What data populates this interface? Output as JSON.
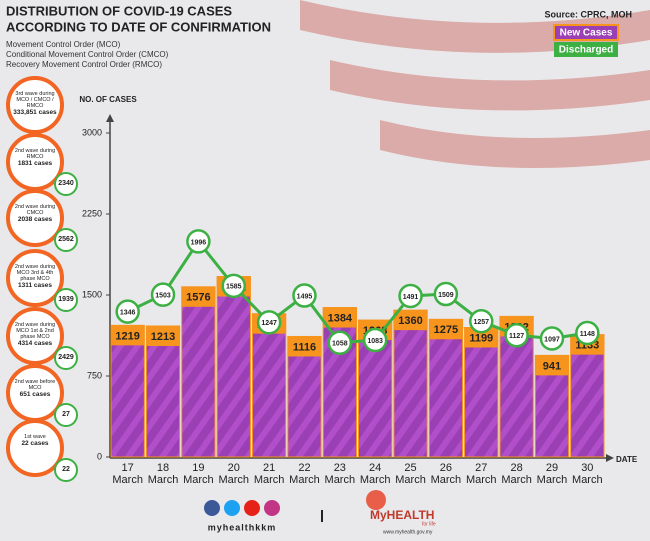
{
  "chart_data": {
    "type": "bar",
    "title": "DISTRIBUTION OF COVID-19 CASES",
    "title_line2": "ACCORDING TO DATE OF CONFIRMATION",
    "subtitle": [
      "Movement Control Order (MCO)",
      "Conditional Movement Control Order (CMCO)",
      "Recovery Movement Control Order (RMCO)"
    ],
    "source": "Source: CPRC, MOH",
    "y_label": "NO. OF CASES",
    "x_label": "DATE",
    "categories": [
      "17 March",
      "18 March",
      "19 March",
      "20 March",
      "21 March",
      "22 March",
      "23 March",
      "24 March",
      "25 March",
      "26 March",
      "27 March",
      "28 March",
      "29 March",
      "30 March"
    ],
    "series": [
      {
        "name": "New Cases",
        "color": "#9b3fb5",
        "cap_color": "#f7941d",
        "values": [
          1219,
          1213,
          1576,
          1671,
          1327,
          1116,
          1384,
          1268,
          1360,
          1275,
          1199,
          1302,
          941,
          1133
        ]
      },
      {
        "name": "Discharged",
        "color": "#3cb043",
        "values": [
          1346,
          1503,
          1996,
          1585,
          1247,
          1495,
          1058,
          1083,
          1491,
          1509,
          1257,
          1127,
          1097,
          1148
        ]
      }
    ],
    "ylim": [
      0,
      3000
    ],
    "yticks": [
      0,
      750,
      1500,
      2250,
      3000
    ],
    "grid": false
  },
  "side_panel": [
    {
      "label": "3rd wave during MCO / CMCO / RMCO",
      "cases": "333,851 cases"
    },
    {
      "label": "2nd wave during RMCO",
      "cases": "1831 cases",
      "discharged": 2340
    },
    {
      "label": "2nd wave during CMCO",
      "cases": "2038 cases",
      "discharged": 2562
    },
    {
      "label": "2nd wave during MCO 3rd & 4th phase MCO",
      "cases": "1311 cases",
      "discharged": 1939
    },
    {
      "label": "2nd wave during MCO 1st & 2nd phase MCO",
      "cases": "4314 cases",
      "discharged": 2429
    },
    {
      "label": "2nd wave before MCO",
      "cases": "651 cases",
      "discharged": 27
    },
    {
      "label": "1st wave",
      "cases": "22 cases",
      "discharged": 22
    }
  ],
  "footer": {
    "handle": "myhealthkkm",
    "brand": "MyHEALTH",
    "tagline": "for life",
    "url": "www.myhealth.gov.my"
  }
}
